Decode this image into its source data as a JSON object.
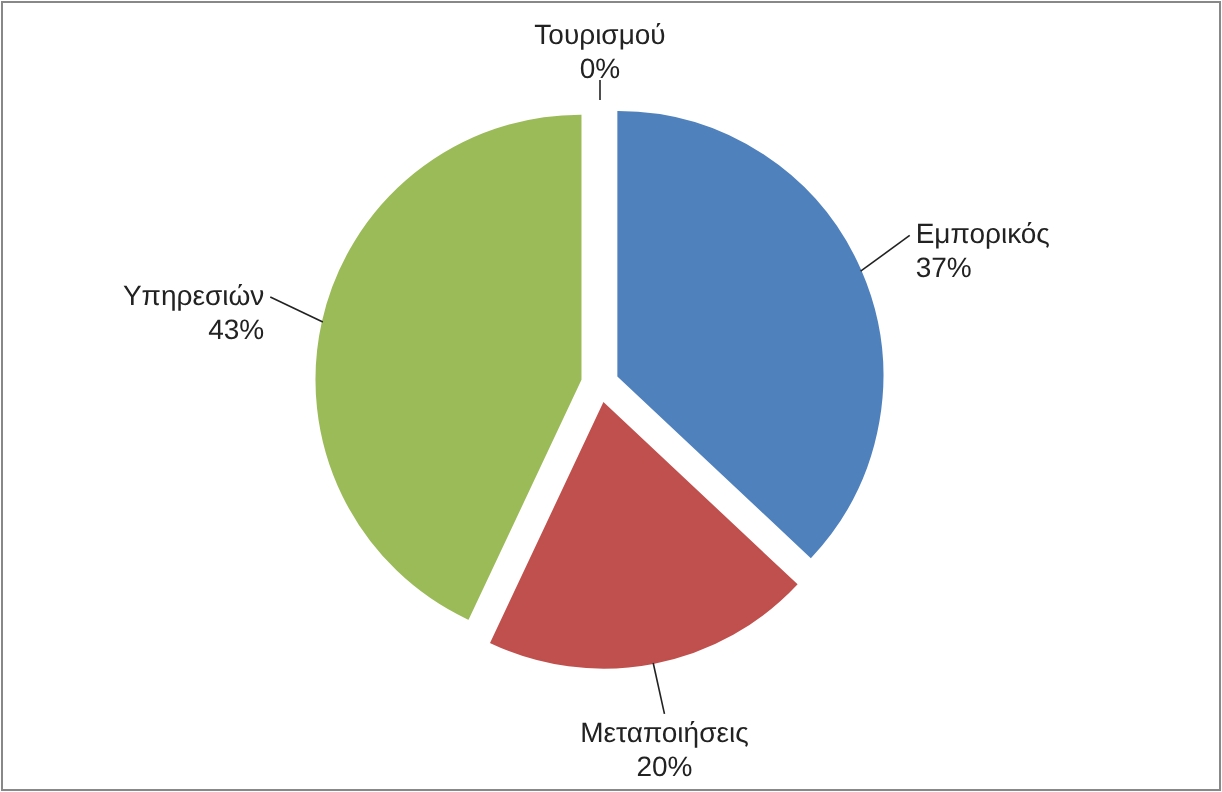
{
  "chart_data": {
    "type": "pie",
    "categories": [
      "Εμπορικός",
      "Μεταποιήσεις",
      "Υπηρεσιών",
      "Τουρισμού"
    ],
    "values": [
      37,
      20,
      43,
      0
    ],
    "value_labels": [
      "37%",
      "20%",
      "43%",
      "0%"
    ],
    "colors": [
      "#4f81bd",
      "#c0504d",
      "#9bbb59",
      "#8064a2"
    ]
  }
}
